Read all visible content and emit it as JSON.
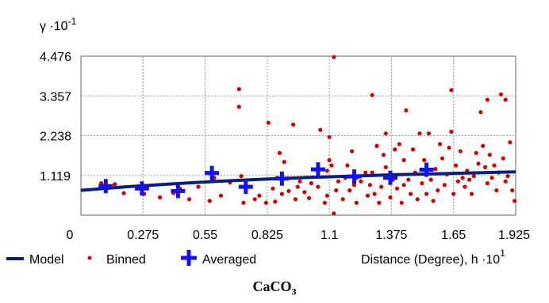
{
  "chart_data": {
    "type": "scatter",
    "ylabel": "γ ·10",
    "ylabel_exp": "-1",
    "xlabel": "Distance (Degree), h ·10",
    "xlabel_exp": "1",
    "xlim": [
      0,
      1.925
    ],
    "ylim": [
      0,
      4.476
    ],
    "xticks": [
      0,
      0.275,
      0.55,
      0.825,
      1.1,
      1.375,
      1.65,
      1.925
    ],
    "xtick_labels": [
      "0",
      "0.275",
      "0.55",
      "0.825",
      "1.1",
      "1.375",
      "1.65",
      "1.925"
    ],
    "yticks": [
      1.119,
      2.238,
      3.357,
      4.476
    ],
    "ytick_labels": [
      "1.119",
      "2.238",
      "3.357",
      "4.476"
    ],
    "grid": true,
    "legend": [
      "Model",
      "Binned",
      "Averaged"
    ],
    "legend_position": "bottom",
    "colors": {
      "model": "#0a1f7a",
      "binned": "#d40000",
      "averaged": "#1414e6",
      "grid": "#9a9a9a"
    },
    "series": [
      {
        "name": "Model",
        "kind": "line",
        "x": [
          0,
          0.2,
          0.4,
          0.6,
          0.8,
          1.0,
          1.2,
          1.4,
          1.6,
          1.8,
          1.925
        ],
        "y": [
          0.7,
          0.8,
          0.88,
          0.95,
          1.01,
          1.06,
          1.1,
          1.14,
          1.17,
          1.2,
          1.22
        ]
      },
      {
        "name": "Binned",
        "kind": "scatter",
        "points": [
          [
            0.09,
            0.9
          ],
          [
            0.15,
            0.87
          ],
          [
            0.19,
            0.62
          ],
          [
            0.25,
            0.75
          ],
          [
            0.28,
            0.6
          ],
          [
            0.35,
            0.5
          ],
          [
            0.41,
            0.62
          ],
          [
            0.44,
            0.74
          ],
          [
            0.48,
            0.45
          ],
          [
            0.52,
            0.8
          ],
          [
            0.57,
            0.4
          ],
          [
            0.59,
            1.05
          ],
          [
            0.62,
            0.55
          ],
          [
            0.66,
            0.92
          ],
          [
            0.7,
            3.55
          ],
          [
            0.7,
            3.05
          ],
          [
            0.71,
            1.1
          ],
          [
            0.72,
            0.35
          ],
          [
            0.73,
            0.95
          ],
          [
            0.77,
            0.45
          ],
          [
            0.79,
            0.55
          ],
          [
            0.82,
            0.35
          ],
          [
            0.83,
            2.6
          ],
          [
            0.85,
            0.75
          ],
          [
            0.86,
            0.38
          ],
          [
            0.87,
            1.05
          ],
          [
            0.88,
            1.75
          ],
          [
            0.89,
            0.6
          ],
          [
            0.9,
            1.5
          ],
          [
            0.92,
            0.68
          ],
          [
            0.94,
            2.55
          ],
          [
            0.95,
            0.45
          ],
          [
            0.96,
            0.8
          ],
          [
            0.97,
            0.95
          ],
          [
            0.99,
            0.65
          ],
          [
            1.01,
            0.48
          ],
          [
            1.02,
            0.9
          ],
          [
            1.05,
            0.8
          ],
          [
            1.06,
            2.4
          ],
          [
            1.08,
            0.35
          ],
          [
            1.09,
            1.25
          ],
          [
            1.09,
            0.55
          ],
          [
            1.1,
            1.55
          ],
          [
            1.1,
            2.2
          ],
          [
            1.11,
            1.4
          ],
          [
            1.12,
            0.05
          ],
          [
            1.12,
            4.45
          ],
          [
            1.13,
            0.7
          ],
          [
            1.14,
            0.95
          ],
          [
            1.16,
            0.45
          ],
          [
            1.17,
            1.05
          ],
          [
            1.18,
            1.4
          ],
          [
            1.19,
            0.7
          ],
          [
            1.2,
            1.8
          ],
          [
            1.21,
            0.85
          ],
          [
            1.22,
            0.35
          ],
          [
            1.22,
            1.05
          ],
          [
            1.24,
            0.95
          ],
          [
            1.26,
            1.2
          ],
          [
            1.27,
            0.55
          ],
          [
            1.28,
            0.85
          ],
          [
            1.29,
            3.38
          ],
          [
            1.29,
            1.2
          ],
          [
            1.3,
            0.6
          ],
          [
            1.31,
            1.95
          ],
          [
            1.32,
            0.35
          ],
          [
            1.33,
            0.8
          ],
          [
            1.34,
            1.7
          ],
          [
            1.35,
            2.3
          ],
          [
            1.35,
            1.35
          ],
          [
            1.37,
            0.5
          ],
          [
            1.38,
            1.0
          ],
          [
            1.39,
            1.85
          ],
          [
            1.4,
            0.75
          ],
          [
            1.41,
            2.0
          ],
          [
            1.42,
            0.35
          ],
          [
            1.43,
            1.55
          ],
          [
            1.43,
            0.85
          ],
          [
            1.44,
            2.95
          ],
          [
            1.45,
            1.0
          ],
          [
            1.46,
            0.6
          ],
          [
            1.47,
            1.85
          ],
          [
            1.48,
            1.2
          ],
          [
            1.49,
            0.45
          ],
          [
            1.5,
            2.3
          ],
          [
            1.51,
            0.9
          ],
          [
            1.52,
            1.55
          ],
          [
            1.53,
            0.6
          ],
          [
            1.54,
            2.3
          ],
          [
            1.55,
            1.0
          ],
          [
            1.56,
            0.4
          ],
          [
            1.57,
            1.3
          ],
          [
            1.58,
            0.7
          ],
          [
            1.59,
            2.0
          ],
          [
            1.6,
            1.6
          ],
          [
            1.61,
            0.85
          ],
          [
            1.62,
            1.15
          ],
          [
            1.63,
            1.9
          ],
          [
            1.64,
            3.52
          ],
          [
            1.64,
            2.35
          ],
          [
            1.65,
            0.6
          ],
          [
            1.66,
            1.4
          ],
          [
            1.67,
            0.95
          ],
          [
            1.68,
            1.8
          ],
          [
            1.69,
            1.05
          ],
          [
            1.7,
            0.8
          ],
          [
            1.71,
            1.25
          ],
          [
            1.72,
            1.0
          ],
          [
            1.73,
            0.6
          ],
          [
            1.74,
            1.1
          ],
          [
            1.75,
            1.75
          ],
          [
            1.76,
            1.45
          ],
          [
            1.77,
            2.9
          ],
          [
            1.78,
            1.95
          ],
          [
            1.79,
            1.35
          ],
          [
            1.8,
            3.25
          ],
          [
            1.8,
            0.9
          ],
          [
            1.81,
            1.7
          ],
          [
            1.82,
            1.05
          ],
          [
            1.83,
            1.4
          ],
          [
            1.84,
            0.7
          ],
          [
            1.85,
            1.2
          ],
          [
            1.86,
            3.4
          ],
          [
            1.87,
            1.6
          ],
          [
            1.88,
            3.25
          ],
          [
            1.88,
            0.95
          ],
          [
            1.89,
            1.1
          ],
          [
            1.9,
            2.05
          ],
          [
            1.91,
            0.7
          ],
          [
            1.92,
            0.4
          ]
        ]
      },
      {
        "name": "Averaged",
        "kind": "scatter",
        "points": [
          [
            0.11,
            0.82
          ],
          [
            0.27,
            0.75
          ],
          [
            0.43,
            0.68
          ],
          [
            0.58,
            1.19
          ],
          [
            0.73,
            0.8
          ],
          [
            0.89,
            1.03
          ],
          [
            1.05,
            1.29
          ],
          [
            1.21,
            1.09
          ],
          [
            1.37,
            1.05
          ],
          [
            1.53,
            1.28
          ]
        ]
      }
    ]
  },
  "caption": {
    "text": "CaCO",
    "subscript": "3"
  }
}
